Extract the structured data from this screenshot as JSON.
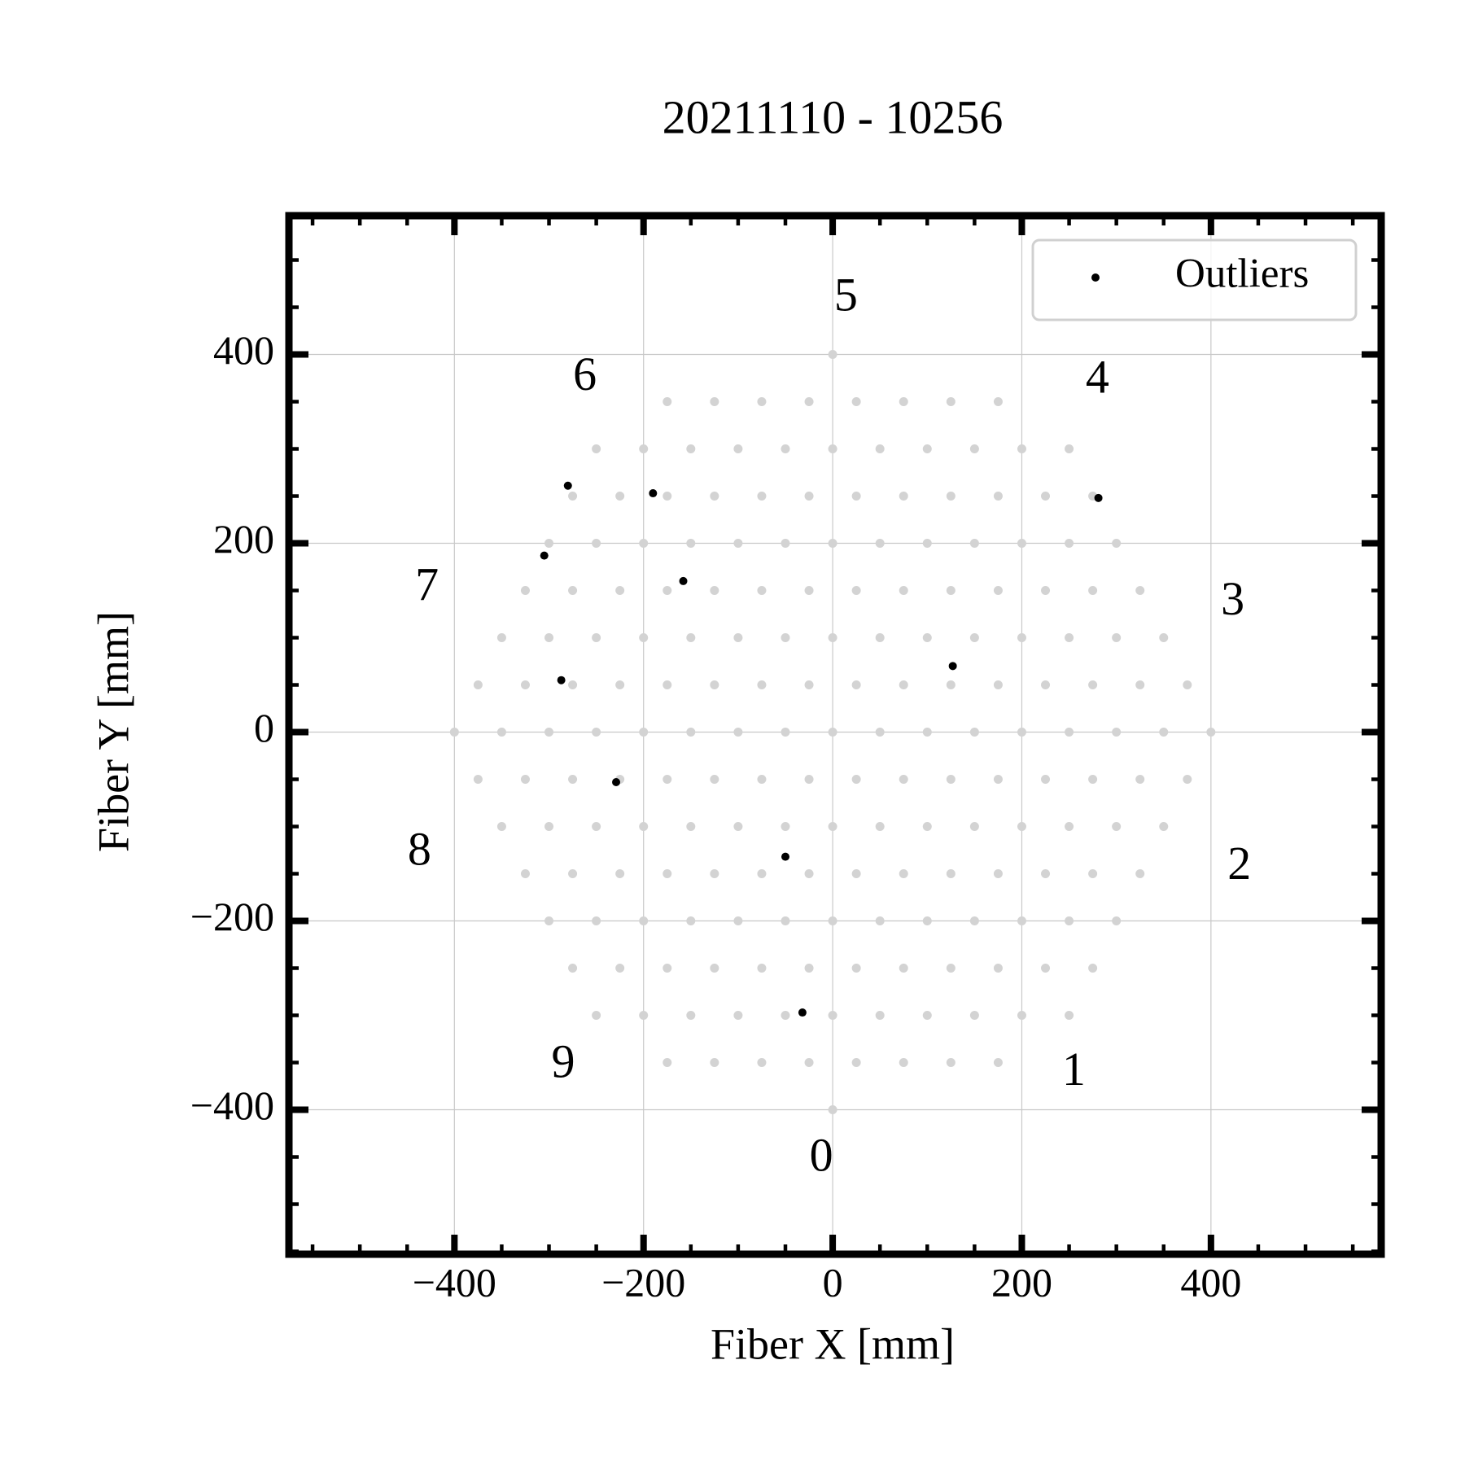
{
  "chart_data": {
    "type": "scatter",
    "title": "20211110 - 10256",
    "x_label": "Fiber X [mm]",
    "y_label": "Fiber Y [mm]",
    "xlim": [
      -575,
      580
    ],
    "ylim": [
      -553,
      547
    ],
    "xticks": [
      {
        "value": -400,
        "label": "−400"
      },
      {
        "value": -200,
        "label": "−200"
      },
      0,
      200,
      400
    ],
    "yticks": [
      {
        "value": -400,
        "label": "−400"
      },
      {
        "value": -200,
        "label": "−200"
      },
      0,
      200,
      400
    ],
    "xminorticks": [
      -550,
      -500,
      -450,
      -350,
      -300,
      -250,
      -150,
      -100,
      -50,
      50,
      100,
      150,
      250,
      300,
      350,
      450,
      500,
      550
    ],
    "yminorticks": [
      -550,
      -500,
      -450,
      -350,
      -300,
      -250,
      -150,
      -100,
      -50,
      50,
      100,
      150,
      250,
      300,
      350,
      450,
      500
    ],
    "grid": true,
    "legend": "upper right",
    "annotations": [
      {
        "text": "0",
        "x": -12,
        "y": -453
      },
      {
        "text": "1",
        "x": 255,
        "y": -362
      },
      {
        "text": "2",
        "x": 430,
        "y": -144
      },
      {
        "text": "3",
        "x": 423,
        "y": 136
      },
      {
        "text": "4",
        "x": 280,
        "y": 371
      },
      {
        "text": "5",
        "x": 14,
        "y": 458
      },
      {
        "text": "6",
        "x": -262,
        "y": 374
      },
      {
        "text": "7",
        "x": -429,
        "y": 151
      },
      {
        "text": "8",
        "x": -437,
        "y": -129
      },
      {
        "text": "9",
        "x": -285,
        "y": -354
      }
    ],
    "series": [
      {
        "color": "#d3d3d3",
        "x": [
          0,
          -175,
          -125,
          -75,
          -25,
          25,
          75,
          125,
          175,
          -250,
          -200,
          -150,
          -100,
          -50,
          0,
          50,
          100,
          150,
          200,
          250,
          -275,
          -225,
          -175,
          -125,
          -75,
          -25,
          25,
          75,
          125,
          175,
          225,
          275,
          -300,
          -250,
          -200,
          -150,
          -100,
          -50,
          0,
          50,
          100,
          150,
          200,
          250,
          300,
          -325,
          -275,
          -225,
          -175,
          -125,
          -75,
          -25,
          25,
          75,
          125,
          175,
          225,
          275,
          325,
          -350,
          -300,
          -250,
          -200,
          -150,
          -100,
          -50,
          0,
          50,
          100,
          150,
          200,
          250,
          300,
          350,
          -375,
          -325,
          -275,
          -225,
          -175,
          -125,
          -75,
          -25,
          25,
          75,
          125,
          175,
          225,
          275,
          325,
          375,
          -400,
          -350,
          -300,
          -250,
          -200,
          -150,
          -100,
          -50,
          0,
          50,
          100,
          150,
          200,
          250,
          300,
          350,
          400,
          -375,
          -325,
          -275,
          -225,
          -175,
          -125,
          -75,
          -25,
          25,
          75,
          125,
          175,
          225,
          275,
          325,
          375,
          -350,
          -300,
          -250,
          -200,
          -150,
          -100,
          -50,
          0,
          50,
          100,
          150,
          200,
          250,
          300,
          350,
          -325,
          -275,
          -225,
          -175,
          -125,
          -75,
          -25,
          25,
          75,
          125,
          175,
          225,
          275,
          325,
          -300,
          -250,
          -200,
          -150,
          -100,
          -50,
          0,
          50,
          100,
          150,
          200,
          250,
          300,
          -275,
          -225,
          -175,
          -125,
          -75,
          -25,
          25,
          75,
          125,
          175,
          225,
          275,
          -250,
          -200,
          -150,
          -100,
          -50,
          0,
          50,
          100,
          150,
          200,
          250,
          -175,
          -125,
          -75,
          -25,
          25,
          75,
          125,
          175,
          0
        ],
        "values": [
          400,
          350,
          350,
          350,
          350,
          350,
          350,
          350,
          350,
          300,
          300,
          300,
          300,
          300,
          300,
          300,
          300,
          300,
          300,
          300,
          250,
          250,
          250,
          250,
          250,
          250,
          250,
          250,
          250,
          250,
          250,
          250,
          200,
          200,
          200,
          200,
          200,
          200,
          200,
          200,
          200,
          200,
          200,
          200,
          200,
          150,
          150,
          150,
          150,
          150,
          150,
          150,
          150,
          150,
          150,
          150,
          150,
          150,
          150,
          100,
          100,
          100,
          100,
          100,
          100,
          100,
          100,
          100,
          100,
          100,
          100,
          100,
          100,
          100,
          50,
          50,
          50,
          50,
          50,
          50,
          50,
          50,
          50,
          50,
          50,
          50,
          50,
          50,
          50,
          50,
          0,
          0,
          0,
          0,
          0,
          0,
          0,
          0,
          0,
          0,
          0,
          0,
          0,
          0,
          0,
          0,
          0,
          -50,
          -50,
          -50,
          -50,
          -50,
          -50,
          -50,
          -50,
          -50,
          -50,
          -50,
          -50,
          -50,
          -50,
          -50,
          -50,
          -100,
          -100,
          -100,
          -100,
          -100,
          -100,
          -100,
          -100,
          -100,
          -100,
          -100,
          -100,
          -100,
          -100,
          -100,
          -150,
          -150,
          -150,
          -150,
          -150,
          -150,
          -150,
          -150,
          -150,
          -150,
          -150,
          -150,
          -150,
          -150,
          -200,
          -200,
          -200,
          -200,
          -200,
          -200,
          -200,
          -200,
          -200,
          -200,
          -200,
          -200,
          -200,
          -250,
          -250,
          -250,
          -250,
          -250,
          -250,
          -250,
          -250,
          -250,
          -250,
          -250,
          -250,
          -300,
          -300,
          -300,
          -300,
          -300,
          -300,
          -300,
          -300,
          -300,
          -300,
          -300,
          -350,
          -350,
          -350,
          -350,
          -350,
          -350,
          -350,
          -350,
          -400
        ]
      },
      {
        "name": "Outliers",
        "color": "#000000",
        "x": [
          -280,
          -190,
          -305,
          -158,
          -287,
          -229,
          -50,
          -32,
          127,
          281
        ],
        "values": [
          261,
          253,
          187,
          160,
          55,
          -53,
          -132,
          -297,
          70,
          248
        ]
      }
    ]
  }
}
